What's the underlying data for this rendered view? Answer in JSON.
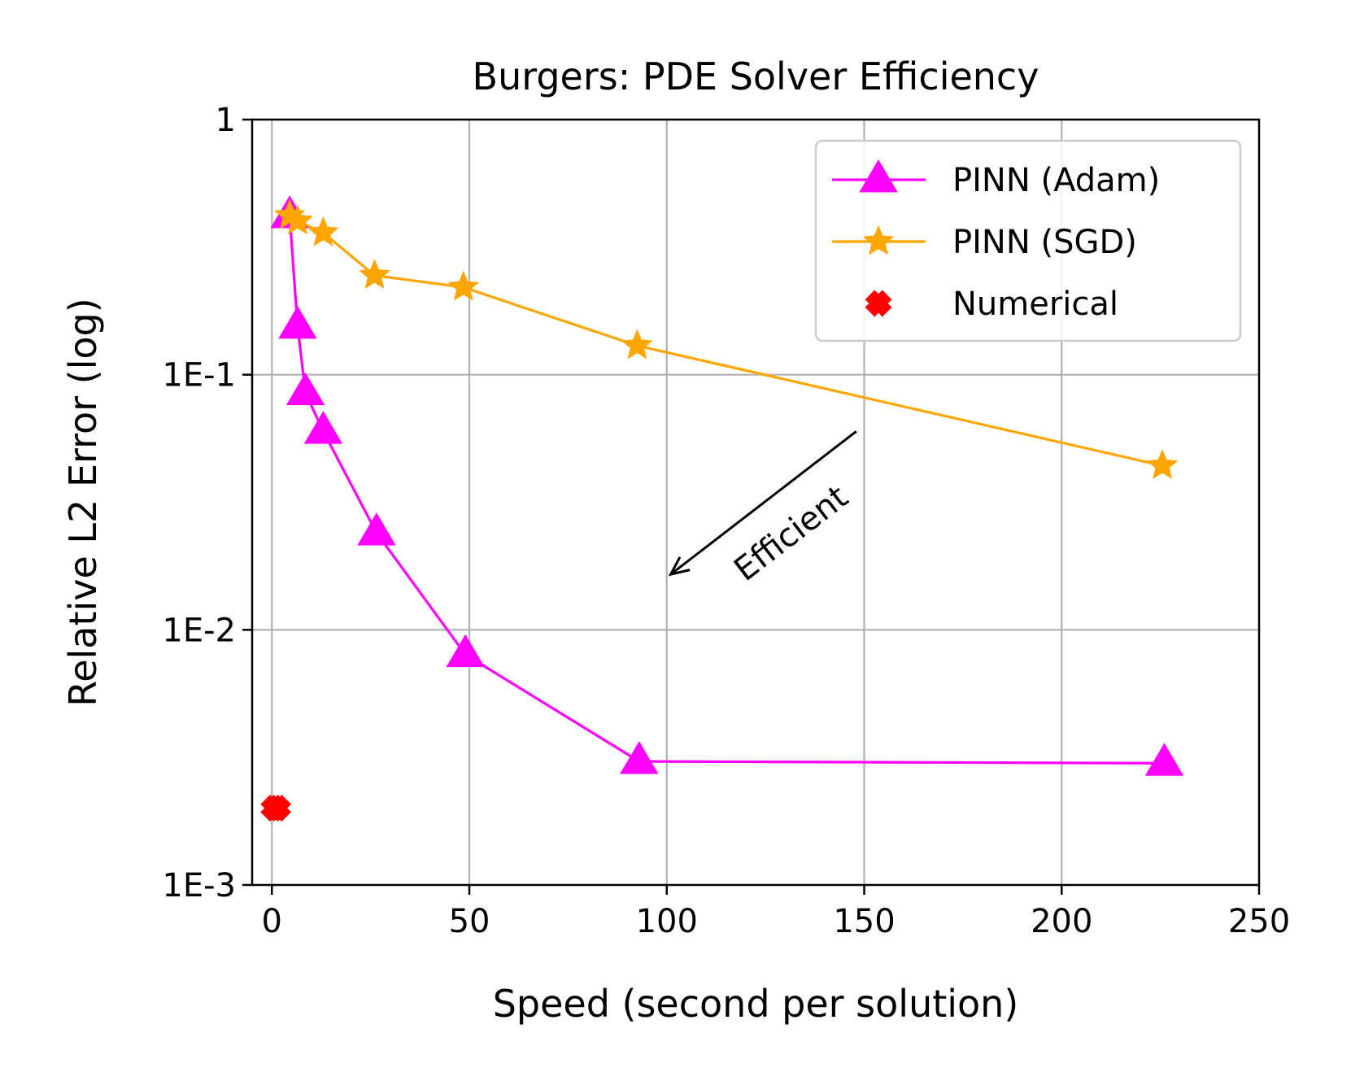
{
  "chart_data": {
    "type": "line",
    "title": "Burgers: PDE Solver Efficiency",
    "xlabel": "Speed (second per solution)",
    "ylabel": "Relative L2 Error (log)",
    "xlim": [
      -5,
      250
    ],
    "ylim": [
      0.001,
      1
    ],
    "yscale": "log",
    "grid": true,
    "legend_position": "top-right",
    "x_ticks": [
      0,
      50,
      100,
      150,
      200,
      250
    ],
    "x_tick_labels": [
      "0",
      "50",
      "100",
      "150",
      "200",
      "250"
    ],
    "y_ticks": [
      0.001,
      0.01,
      0.1,
      1
    ],
    "y_tick_labels": [
      "1E-3",
      "1E-2",
      "1E-1",
      "1"
    ],
    "series": [
      {
        "name": "PINN (Adam)",
        "color": "#ff00ff",
        "marker": "triangle",
        "line": true,
        "x": [
          4.5,
          6.5,
          8.5,
          13,
          26.5,
          49,
          93,
          226
        ],
        "y": [
          0.42,
          0.155,
          0.085,
          0.06,
          0.024,
          0.008,
          0.00305,
          0.003
        ]
      },
      {
        "name": "PINN (SGD)",
        "color": "#ffa500",
        "marker": "star",
        "line": true,
        "x": [
          4.5,
          6.5,
          13,
          26,
          48.5,
          92.5,
          225.5
        ],
        "y": [
          0.42,
          0.4,
          0.36,
          0.245,
          0.22,
          0.13,
          0.044
        ]
      },
      {
        "name": "Numerical",
        "color": "#ff0000",
        "marker": "x",
        "line": false,
        "x": [
          0.5,
          1.5
        ],
        "y": [
          0.002,
          0.002
        ]
      }
    ],
    "annotations": [
      {
        "text": "Efficient",
        "arrow_from": [
          148,
          0.06
        ],
        "arrow_to": [
          101,
          0.0165
        ]
      }
    ]
  }
}
